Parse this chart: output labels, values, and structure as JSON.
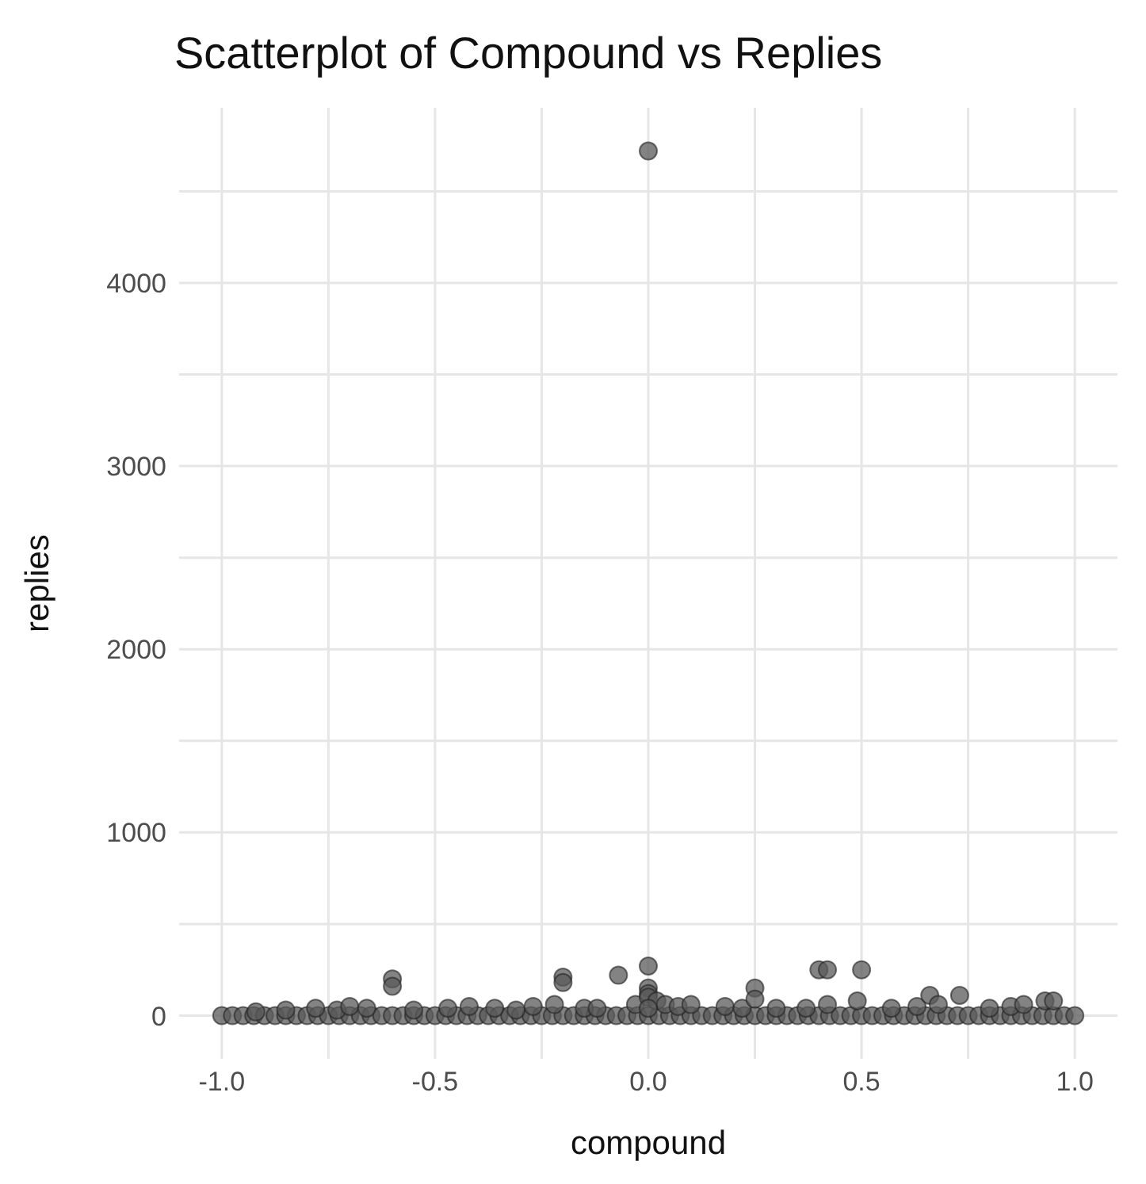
{
  "chart_data": {
    "type": "scatter",
    "title": "Scatterplot of Compound vs Replies",
    "xlabel": "compound",
    "ylabel": "replies",
    "x": [
      -1,
      -0.975,
      -0.95,
      -0.925,
      -0.9,
      -0.875,
      -0.85,
      -0.825,
      -0.8,
      -0.775,
      -0.75,
      -0.725,
      -0.7,
      -0.675,
      -0.65,
      -0.625,
      -0.6,
      -0.575,
      -0.55,
      -0.525,
      -0.5,
      -0.475,
      -0.45,
      -0.425,
      -0.4,
      -0.375,
      -0.35,
      -0.325,
      -0.3,
      -0.275,
      -0.25,
      -0.225,
      -0.2,
      -0.175,
      -0.15,
      -0.125,
      -0.1,
      -0.075,
      -0.05,
      -0.025,
      0,
      0.025,
      0.05,
      0.075,
      0.1,
      0.125,
      0.15,
      0.175,
      0.2,
      0.225,
      0.25,
      0.275,
      0.3,
      0.325,
      0.35,
      0.375,
      0.4,
      0.425,
      0.45,
      0.475,
      0.5,
      0.525,
      0.55,
      0.575,
      0.6,
      0.625,
      0.65,
      0.675,
      0.7,
      0.725,
      0.75,
      0.775,
      0.8,
      0.825,
      0.85,
      0.875,
      0.9,
      0.925,
      0.95,
      0.975,
      1,
      -0.92,
      -0.85,
      -0.78,
      -0.73,
      -0.7,
      -0.66,
      -0.6,
      -0.6,
      -0.55,
      -0.47,
      -0.42,
      -0.36,
      -0.31,
      -0.27,
      -0.22,
      -0.2,
      -0.2,
      -0.15,
      -0.12,
      -0.07,
      -0.03,
      0,
      0,
      0,
      0,
      0.02,
      0.04,
      0.07,
      0.1,
      0.18,
      0.22,
      0.25,
      0.25,
      0.3,
      0.37,
      0.4,
      0.42,
      0.42,
      0.5,
      0.49,
      0.57,
      0.63,
      0.66,
      0.68,
      0.73,
      0.8,
      0.85,
      0.88,
      0.93,
      0.95,
      0,
      0
    ],
    "series": [
      {
        "color": "#595959",
        "values": [
          0,
          0,
          0,
          0,
          0,
          0,
          0,
          0,
          0,
          0,
          0,
          0,
          0,
          0,
          0,
          0,
          0,
          0,
          0,
          0,
          0,
          0,
          0,
          0,
          0,
          0,
          0,
          0,
          0,
          0,
          0,
          0,
          0,
          0,
          0,
          0,
          0,
          0,
          0,
          0,
          0,
          0,
          0,
          0,
          0,
          0,
          0,
          0,
          0,
          0,
          0,
          0,
          0,
          0,
          0,
          0,
          0,
          0,
          0,
          0,
          0,
          0,
          0,
          0,
          0,
          0,
          0,
          0,
          0,
          0,
          0,
          0,
          0,
          0,
          0,
          0,
          0,
          0,
          0,
          0,
          0,
          20,
          30,
          40,
          30,
          50,
          40,
          200,
          160,
          30,
          40,
          50,
          40,
          30,
          50,
          60,
          210,
          180,
          40,
          40,
          220,
          60,
          270,
          150,
          120,
          100,
          80,
          60,
          50,
          60,
          50,
          40,
          150,
          90,
          40,
          40,
          250,
          250,
          60,
          250,
          80,
          40,
          50,
          110,
          60,
          110,
          40,
          50,
          60,
          80,
          80,
          4720,
          40
        ]
      }
    ],
    "xlim": [
      -1.1,
      1.1
    ],
    "xticks": [
      {
        "value": -1,
        "label": "-1.0"
      },
      {
        "value": -0.75,
        "label": null
      },
      {
        "value": -0.5,
        "label": "-0.5"
      },
      {
        "value": -0.25,
        "label": null
      },
      {
        "value": 0,
        "label": "0.0"
      },
      {
        "value": 0.25,
        "label": null
      },
      {
        "value": 0.5,
        "label": "0.5"
      },
      {
        "value": 0.75,
        "label": null
      },
      {
        "value": 1,
        "label": "1.0"
      }
    ],
    "ylim": [
      -236,
      4956
    ],
    "yticks": [
      0,
      {
        "value": 500,
        "label": null
      },
      1000,
      {
        "value": 1500,
        "label": null
      },
      2000,
      {
        "value": 2500,
        "label": null
      },
      3000,
      {
        "value": 3500,
        "label": null
      },
      4000,
      {
        "value": 4500,
        "label": null
      }
    ],
    "grid": true,
    "marker": "circle"
  }
}
